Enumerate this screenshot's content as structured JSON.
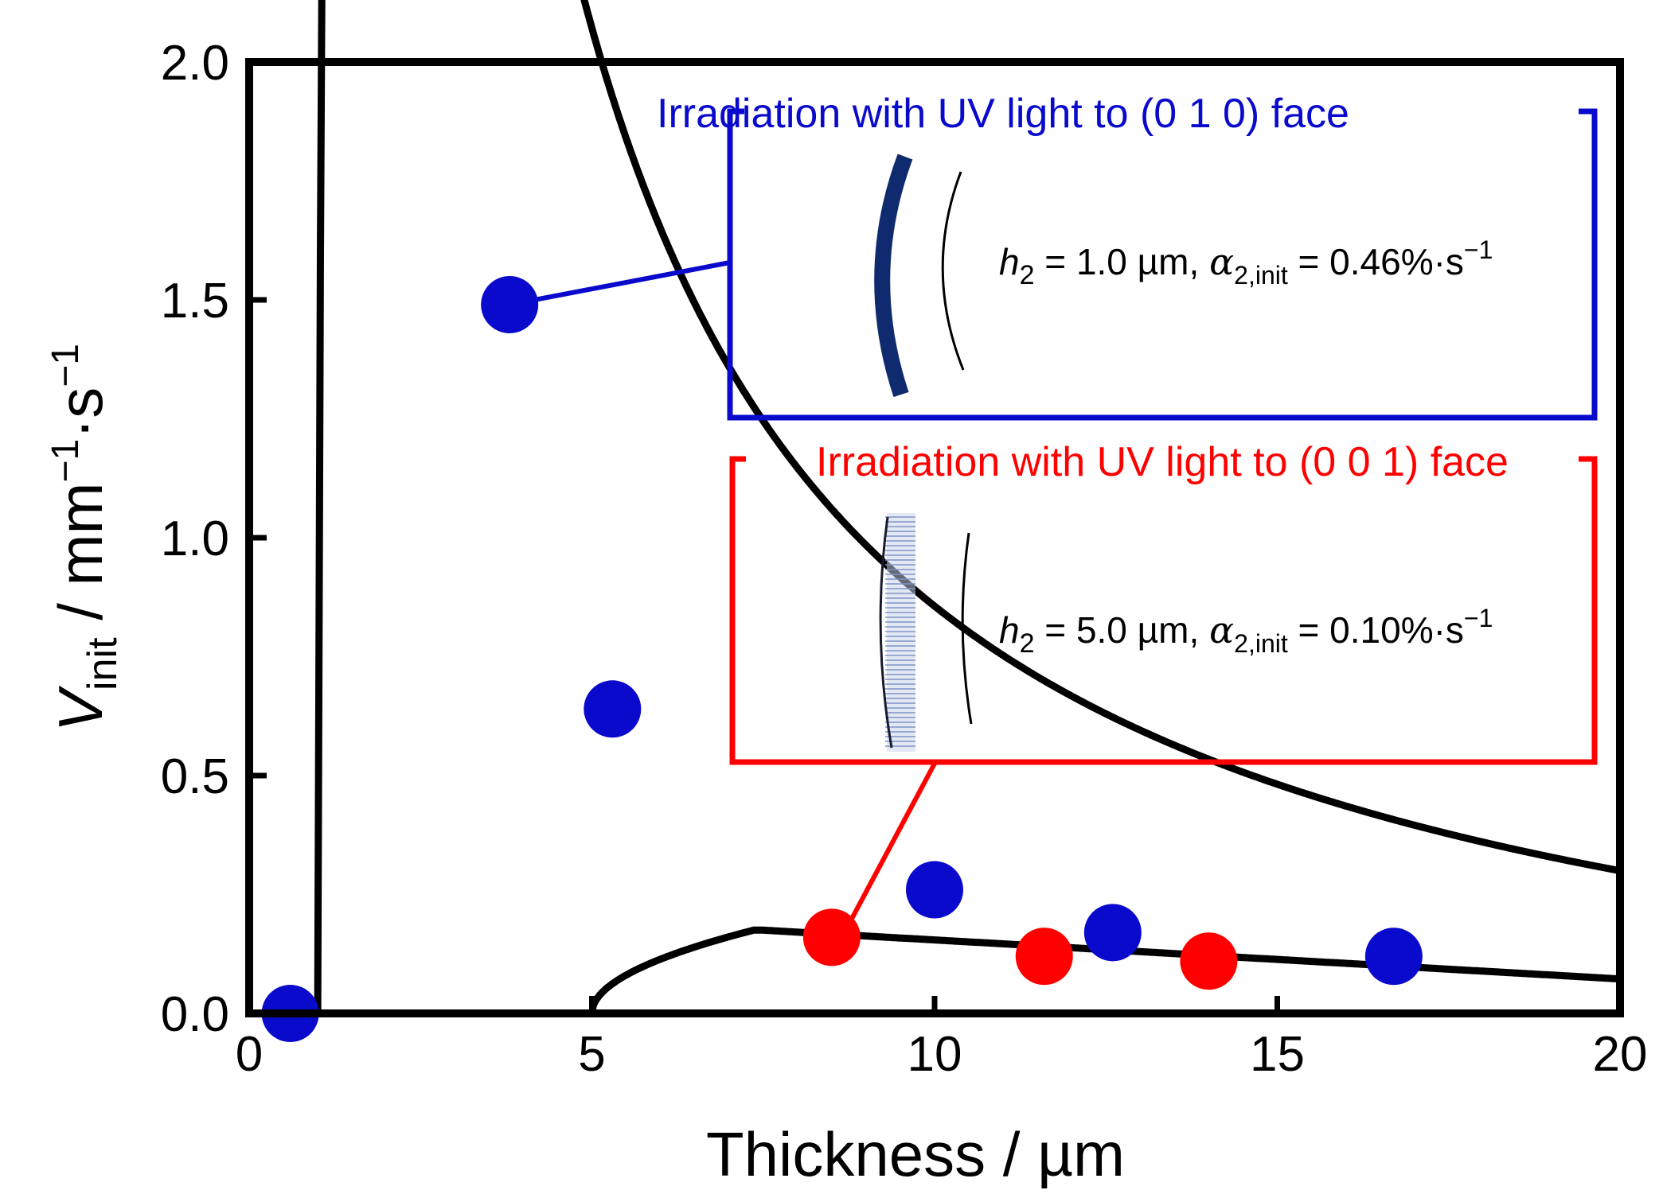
{
  "chart_data": {
    "type": "scatter",
    "xlabel": "Thickness / µm",
    "ylabel": {
      "main": "V",
      "sub": "init",
      "units": " / mm",
      "exp1": "−1",
      "dot": "·s",
      "exp2": "−1"
    },
    "xlim": [
      0,
      20
    ],
    "ylim": [
      0,
      2.0
    ],
    "xticks": [
      0,
      5,
      10,
      15,
      20
    ],
    "xtick_labels": [
      "0",
      "5",
      "10",
      "15",
      "20"
    ],
    "yticks": [
      0,
      0.5,
      1.0,
      1.5,
      2.0
    ],
    "ytick_labels": [
      "0.0",
      "0.5",
      "1.0",
      "1.5",
      "2.0"
    ],
    "series": [
      {
        "name": "Irradiation with UV light to (0 1 0) face",
        "color": "#0a0acc",
        "points": [
          [
            0.6,
            0.0
          ],
          [
            3.8,
            1.49
          ],
          [
            5.3,
            0.64
          ],
          [
            10.0,
            0.26
          ],
          [
            12.6,
            0.17
          ],
          [
            16.7,
            0.12
          ]
        ]
      },
      {
        "name": "Irradiation with UV light to (0 0 1) face",
        "color": "#ff0000",
        "points": [
          [
            8.5,
            0.16
          ],
          [
            11.6,
            0.12
          ],
          [
            14.0,
            0.11
          ]
        ]
      }
    ],
    "curves": [
      {
        "name": "fit (0 1 0)",
        "color": "#000000",
        "x_start": 1.0,
        "x_end": 20.0
      },
      {
        "name": "fit (0 0 1)",
        "color": "#000000",
        "x_start": 5.0,
        "x_end": 20.0
      }
    ],
    "insets": [
      {
        "title": "Irradiation with UV light to (0 1 0) face",
        "color": "#0a0acc",
        "h_label": "h",
        "h_sub": "2",
        "h_value": " = 1.0 µm, ",
        "alpha_label": "α",
        "alpha_sub": "2,init",
        "alpha_value": " = 0.46%·s",
        "alpha_exp": "−1"
      },
      {
        "title": "Irradiation with UV light to (0 0 1) face",
        "color": "#ff0000",
        "h_label": "h",
        "h_sub": "2",
        "h_value": " = 5.0 µm, ",
        "alpha_label": "α",
        "alpha_sub": "2,init",
        "alpha_value": " = 0.10%·s",
        "alpha_exp": "−1"
      }
    ]
  }
}
